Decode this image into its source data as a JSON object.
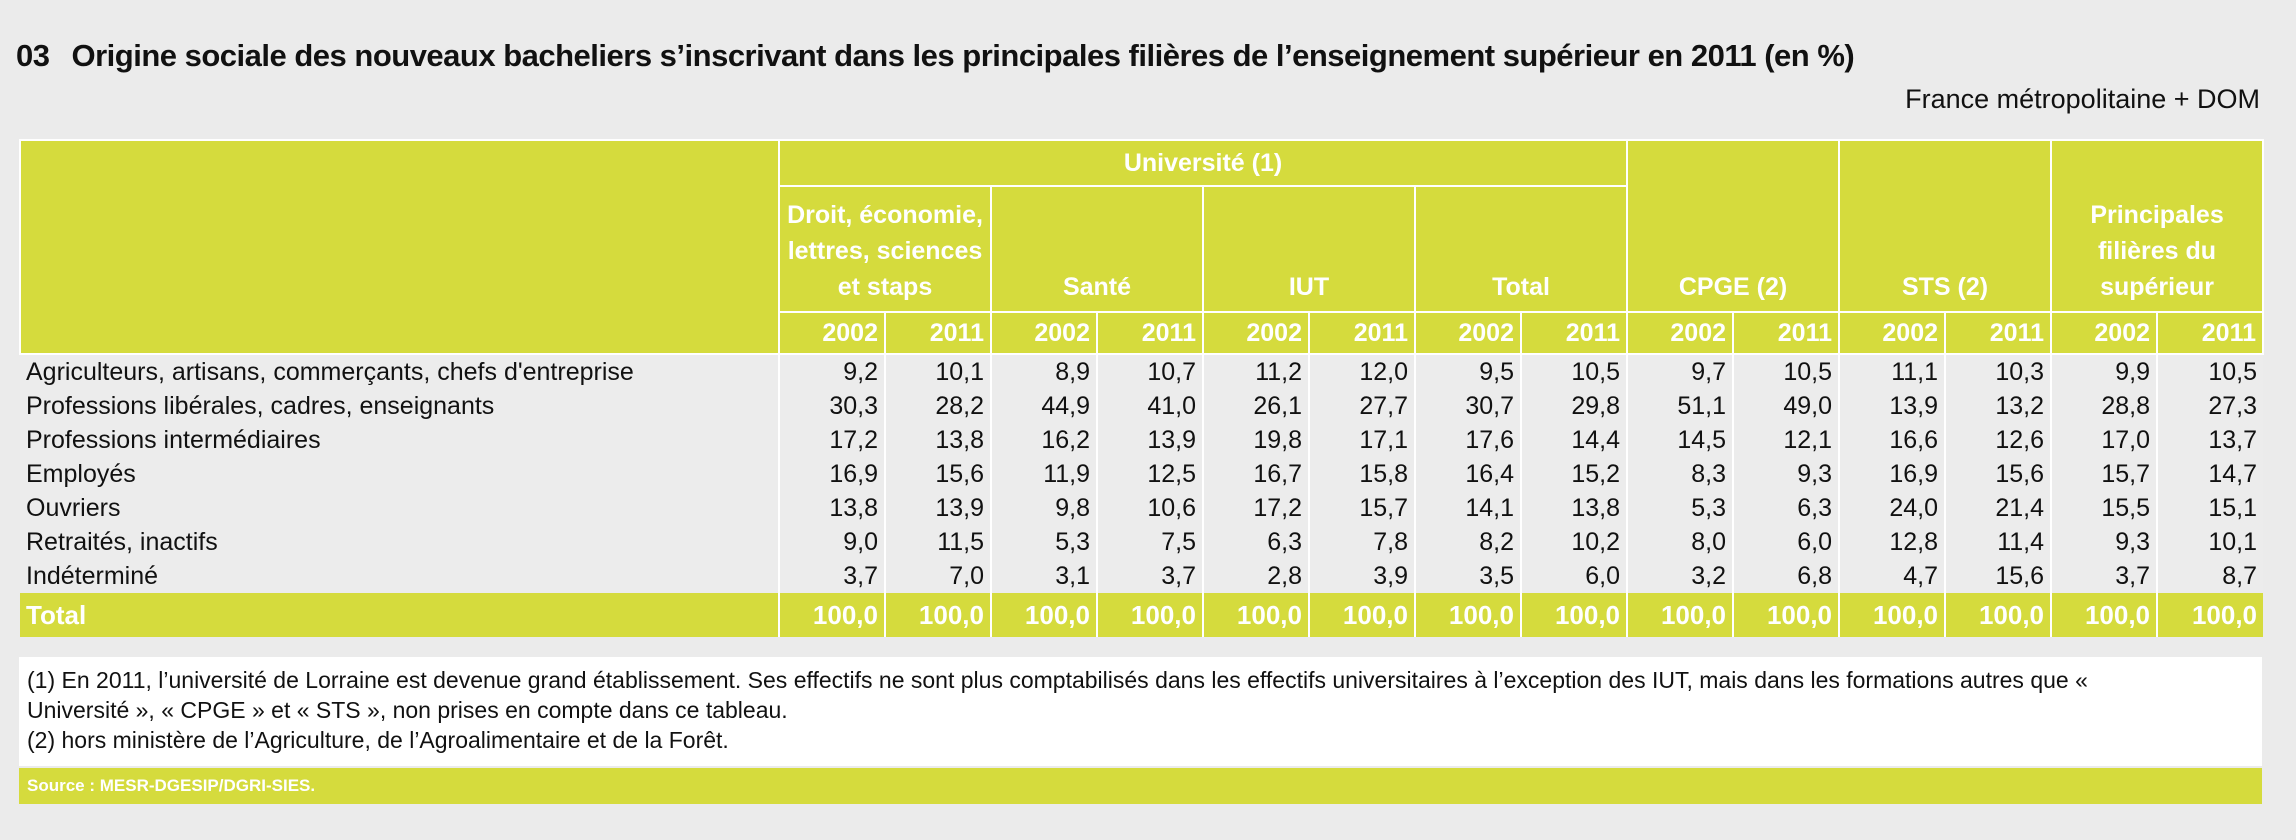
{
  "header": {
    "number": "03",
    "title": "Origine sociale des nouveaux bacheliers s’inscrivant dans les principales filières de l’enseignement supérieur en 2011 (en %)",
    "scope": "France métropolitaine + DOM"
  },
  "table": {
    "group_header": "Université (1)",
    "university_columns": [
      "Droit, économie, lettres, sciences et staps",
      "Santé",
      "IUT",
      "Total"
    ],
    "other_columns": [
      "CPGE (2)",
      "STS (2)",
      "Principales filières du supérieur"
    ],
    "years": [
      "2002",
      "2011"
    ],
    "rows": [
      {
        "label": "Agriculteurs, artisans, commerçants, chefs d'entreprise",
        "values": [
          "9,2",
          "10,1",
          "8,9",
          "10,7",
          "11,2",
          "12,0",
          "9,5",
          "10,5",
          "9,7",
          "10,5",
          "11,1",
          "10,3",
          "9,9",
          "10,5"
        ]
      },
      {
        "label": "Professions libérales, cadres, enseignants",
        "values": [
          "30,3",
          "28,2",
          "44,9",
          "41,0",
          "26,1",
          "27,7",
          "30,7",
          "29,8",
          "51,1",
          "49,0",
          "13,9",
          "13,2",
          "28,8",
          "27,3"
        ]
      },
      {
        "label": "Professions intermédiaires",
        "values": [
          "17,2",
          "13,8",
          "16,2",
          "13,9",
          "19,8",
          "17,1",
          "17,6",
          "14,4",
          "14,5",
          "12,1",
          "16,6",
          "12,6",
          "17,0",
          "13,7"
        ]
      },
      {
        "label": "Employés",
        "values": [
          "16,9",
          "15,6",
          "11,9",
          "12,5",
          "16,7",
          "15,8",
          "16,4",
          "15,2",
          "8,3",
          "9,3",
          "16,9",
          "15,6",
          "15,7",
          "14,7"
        ]
      },
      {
        "label": "Ouvriers",
        "values": [
          "13,8",
          "13,9",
          "9,8",
          "10,6",
          "17,2",
          "15,7",
          "14,1",
          "13,8",
          "5,3",
          "6,3",
          "24,0",
          "21,4",
          "15,5",
          "15,1"
        ]
      },
      {
        "label": "Retraités, inactifs",
        "values": [
          "9,0",
          "11,5",
          "5,3",
          "7,5",
          "6,3",
          "7,8",
          "8,2",
          "10,2",
          "8,0",
          "6,0",
          "12,8",
          "11,4",
          "9,3",
          "10,1"
        ]
      },
      {
        "label": "Indéterminé",
        "values": [
          "3,7",
          "7,0",
          "3,1",
          "3,7",
          "2,8",
          "3,9",
          "3,5",
          "6,0",
          "3,2",
          "6,8",
          "4,7",
          "15,6",
          "3,7",
          "8,7"
        ]
      }
    ],
    "total": {
      "label": "Total",
      "values": [
        "100,0",
        "100,0",
        "100,0",
        "100,0",
        "100,0",
        "100,0",
        "100,0",
        "100,0",
        "100,0",
        "100,0",
        "100,0",
        "100,0",
        "100,0",
        "100,0"
      ]
    }
  },
  "notes": [
    "(1) En 2011, l’université de Lorraine est devenue grand établissement. Ses effectifs ne sont plus comptabilisés dans les effectifs universitaires à l’exception des IUT, mais dans les formations autres que « Université », « CPGE » et « STS », non prises en compte dans ce tableau.",
    "(2) hors ministère de l’Agriculture, de l’Agroalimentaire et de la Forêt."
  ],
  "source": "Source : MESR-DGESIP/DGRI-SIES."
}
